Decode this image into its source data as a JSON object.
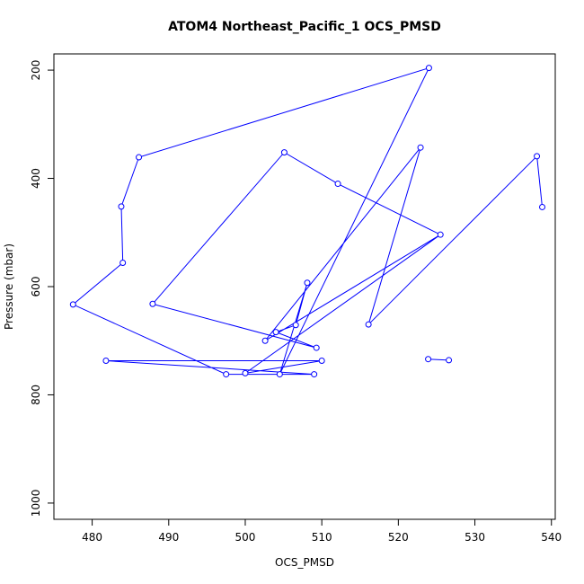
{
  "chart_data": {
    "type": "line",
    "title": "ATOM4 Northeast_Pacific_1 OCS_PMSD",
    "xlabel": "OCS_PMSD",
    "ylabel": "Pressure (mbar)",
    "xlim": [
      475.0,
      540.5
    ],
    "ylim": [
      1030,
      170
    ],
    "y_reversed": true,
    "grid": false,
    "x_ticks": [
      480,
      490,
      500,
      510,
      520,
      530,
      540
    ],
    "y_ticks": [
      200,
      400,
      600,
      800,
      1000
    ],
    "x_tick_labels": [
      "480",
      "490",
      "500",
      "510",
      "520",
      "530",
      "540"
    ],
    "y_tick_labels": [
      "200",
      "400",
      "600",
      "800",
      "1000"
    ],
    "series": [
      {
        "color": "#0000ff",
        "points": [
          {
            "x": 538.8,
            "y": 453
          },
          {
            "x": 538.1,
            "y": 359
          },
          {
            "x": 516.1,
            "y": 670
          },
          {
            "x": 522.9,
            "y": 343
          },
          {
            "x": 502.6,
            "y": 700
          },
          {
            "x": 525.5,
            "y": 504
          },
          {
            "x": 500.0,
            "y": 760
          },
          {
            "x": 510.0,
            "y": 737
          },
          {
            "x": 481.8,
            "y": 737
          },
          {
            "x": 509.0,
            "y": 762
          },
          {
            "x": 497.5,
            "y": 762
          },
          {
            "x": 477.5,
            "y": 633
          },
          {
            "x": 484.0,
            "y": 556
          },
          {
            "x": 483.8,
            "y": 452
          },
          {
            "x": 486.1,
            "y": 361
          },
          {
            "x": 524.0,
            "y": 196
          },
          {
            "x": 504.5,
            "y": 762
          },
          {
            "x": 508.1,
            "y": 593
          },
          {
            "x": 506.6,
            "y": 671
          },
          {
            "x": 504.0,
            "y": 684
          },
          {
            "x": 509.3,
            "y": 713
          },
          {
            "x": 487.9,
            "y": 632
          },
          {
            "x": 505.1,
            "y": 352
          },
          {
            "x": 512.1,
            "y": 410
          },
          {
            "x": 525.5,
            "y": 504
          }
        ],
        "extra_segment": [
          {
            "x": 523.9,
            "y": 734
          },
          {
            "x": 526.6,
            "y": 736
          }
        ]
      }
    ]
  }
}
